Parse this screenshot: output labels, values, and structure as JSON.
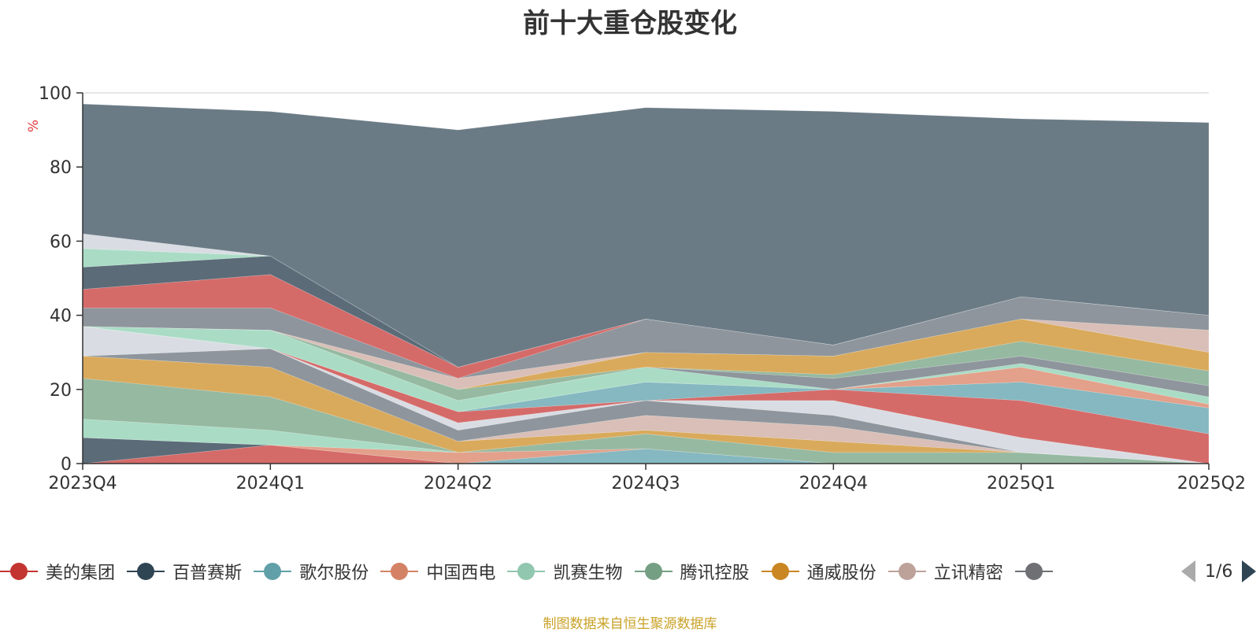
{
  "chart_data": {
    "type": "area",
    "stacked": true,
    "title": "前十大重仓股变化",
    "ylabel": "%",
    "ylim": [
      0,
      100
    ],
    "yticks": [
      0,
      20,
      40,
      60,
      80,
      100
    ],
    "grid": true,
    "categories": [
      "2023Q4",
      "2024Q1",
      "2024Q2",
      "2024Q3",
      "2024Q4",
      "2025Q1",
      "2025Q2"
    ],
    "series": [
      {
        "name": "美的集团",
        "color": "#d56b69",
        "values": [
          0,
          5,
          0,
          0,
          0,
          0,
          0
        ]
      },
      {
        "name": "百普赛斯",
        "color": "#5b6b78",
        "values": [
          7,
          0,
          0,
          0,
          0,
          0,
          0
        ]
      },
      {
        "name": "歌尔股份",
        "color": "#85b8c0",
        "values": [
          0,
          0,
          0,
          4,
          0,
          0,
          0
        ]
      },
      {
        "name": "中国西电",
        "color": "#e3a08a",
        "values": [
          0,
          0,
          3,
          0,
          0,
          0,
          0
        ]
      },
      {
        "name": "凯赛生物",
        "color": "#aadcc5",
        "values": [
          5,
          4,
          0,
          0,
          0,
          0,
          0
        ]
      },
      {
        "name": "腾讯控股",
        "color": "#96b9a1",
        "values": [
          11,
          9,
          0,
          4,
          3,
          3,
          0
        ]
      },
      {
        "name": "通威股份",
        "color": "#d9aa5c",
        "values": [
          6,
          8,
          3,
          1,
          3,
          0,
          0
        ]
      },
      {
        "name": "立讯精密",
        "color": "#d9bfb7",
        "values": [
          0,
          0,
          0,
          4,
          4,
          0,
          0
        ]
      },
      {
        "name": "",
        "color": "#8e959c",
        "values": [
          0,
          5,
          3,
          4,
          3,
          0,
          0
        ]
      },
      {
        "name": "",
        "color": "#d9dde3",
        "values": [
          8,
          0,
          2,
          0,
          4,
          4,
          0
        ]
      },
      {
        "name": "",
        "color": "#d56b69",
        "values": [
          0,
          0,
          3,
          0,
          3,
          10,
          8
        ]
      },
      {
        "name": "",
        "color": "#85b8c0",
        "values": [
          0,
          0,
          0,
          5,
          0,
          5,
          7
        ]
      },
      {
        "name": "",
        "color": "#e3a08a",
        "values": [
          0,
          0,
          0,
          0,
          0,
          4,
          1
        ]
      },
      {
        "name": "",
        "color": "#aadcc5",
        "values": [
          0,
          5,
          3,
          4,
          0,
          1,
          2
        ]
      },
      {
        "name": "",
        "color": "#8e959c",
        "values": [
          0,
          0,
          0,
          0,
          3,
          2,
          3
        ]
      },
      {
        "name": "",
        "color": "#96b9a1",
        "values": [
          0,
          0,
          3,
          0,
          1,
          4,
          4
        ]
      },
      {
        "name": "",
        "color": "#d9aa5c",
        "values": [
          0,
          0,
          0,
          4,
          5,
          6,
          5
        ]
      },
      {
        "name": "",
        "color": "#d9bfb7",
        "values": [
          0,
          0,
          3,
          0,
          0,
          0,
          6
        ]
      },
      {
        "name": "",
        "color": "#8e959c",
        "values": [
          5,
          6,
          0,
          9,
          3,
          6,
          4
        ]
      },
      {
        "name": "",
        "color": "#d56b69",
        "values": [
          5,
          9,
          3,
          0,
          0,
          0,
          0
        ]
      },
      {
        "name": "",
        "color": "#5b6b78",
        "values": [
          6,
          5,
          0,
          0,
          0,
          0,
          0
        ]
      },
      {
        "name": "",
        "color": "#aadcc5",
        "values": [
          5,
          0,
          0,
          0,
          0,
          0,
          0
        ]
      },
      {
        "name": "",
        "color": "#d9dde3",
        "values": [
          4,
          0,
          0,
          0,
          0,
          0,
          0
        ]
      },
      {
        "name": "",
        "color": "#6b7b86",
        "values": [
          35,
          39,
          64,
          57,
          63,
          48,
          52
        ]
      }
    ],
    "legend": {
      "items": [
        {
          "name": "美的集团",
          "color": "#c23531"
        },
        {
          "name": "百普赛斯",
          "color": "#2f4554"
        },
        {
          "name": "歌尔股份",
          "color": "#61a0a8"
        },
        {
          "name": "中国西电",
          "color": "#d48265"
        },
        {
          "name": "凯赛生物",
          "color": "#91c7ae"
        },
        {
          "name": "腾讯控股",
          "color": "#749f83"
        },
        {
          "name": "通威股份",
          "color": "#ca8622"
        },
        {
          "name": "立讯精密",
          "color": "#bda29a"
        },
        {
          "name": "",
          "color": "#6e7074"
        }
      ],
      "placement": "bottom",
      "page": "1/6"
    },
    "source": "制图数据来自恒生聚源数据库"
  }
}
